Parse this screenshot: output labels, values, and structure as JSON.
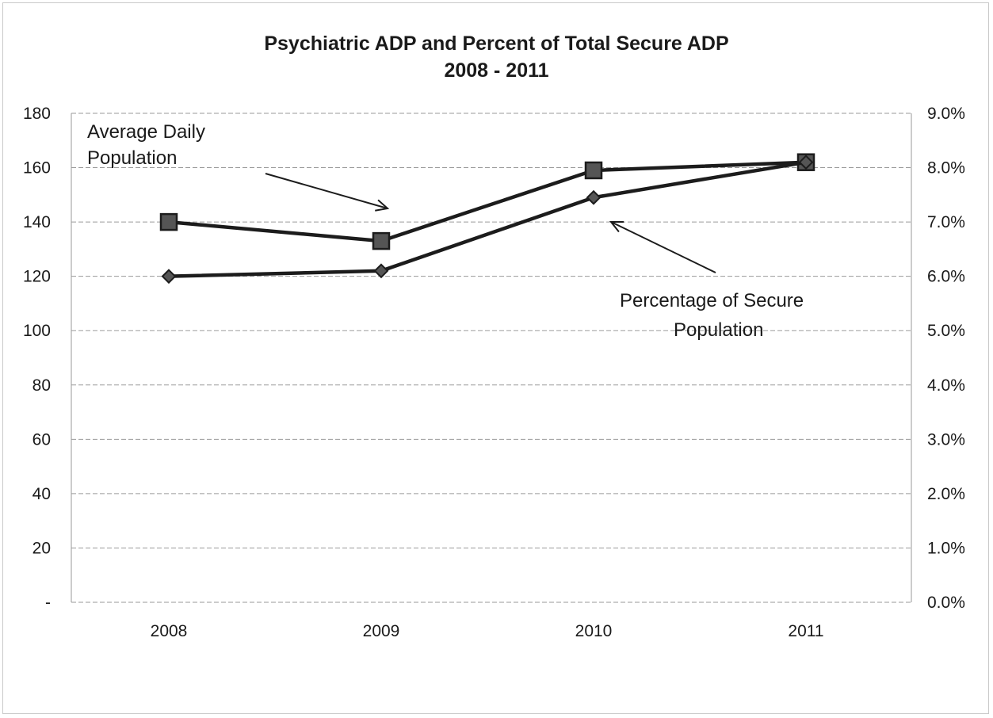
{
  "chart_data": {
    "type": "line",
    "title": "Psychiatric ADP and Percent of Total Secure ADP",
    "subtitle": "2008 - 2011",
    "categories": [
      "2008",
      "2009",
      "2010",
      "2011"
    ],
    "series": [
      {
        "name": "Average Daily Population",
        "axis": "left",
        "marker": "square",
        "values": [
          140,
          133,
          159,
          162
        ]
      },
      {
        "name": "Percentage of Secure Population",
        "axis": "right",
        "marker": "diamond",
        "values": [
          6.0,
          6.1,
          7.45,
          8.1
        ]
      }
    ],
    "y_left": {
      "ylim": [
        0,
        180
      ],
      "ticks": [
        "-",
        "20",
        "40",
        "60",
        "80",
        "100",
        "120",
        "140",
        "160",
        "180"
      ]
    },
    "y_right": {
      "ylim": [
        0,
        9
      ],
      "unit": "%",
      "ticks": [
        "0.0%",
        "1.0%",
        "2.0%",
        "3.0%",
        "4.0%",
        "5.0%",
        "6.0%",
        "7.0%",
        "8.0%",
        "9.0%"
      ]
    },
    "annotations": [
      {
        "lines": [
          "Average Daily",
          "Population"
        ],
        "points_to": "Average Daily Population 2009"
      },
      {
        "lines": [
          "Percentage of Secure",
          "Population"
        ],
        "points_to": "Percentage of Secure Population 2010"
      }
    ],
    "grid": true,
    "legend": "none"
  },
  "colors": {
    "line": "#1c1c1c",
    "grid": "#9a9a9a",
    "marker_fill": "#555555"
  }
}
